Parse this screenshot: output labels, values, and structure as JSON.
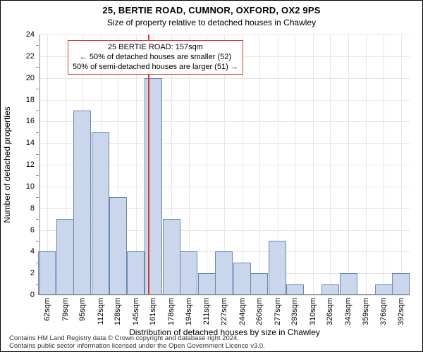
{
  "title": "25, BERTIE ROAD, CUMNOR, OXFORD, OX2 9PS",
  "subtitle": "Size of property relative to detached houses in Chawley",
  "xaxis_title": "Distribution of detached houses by size in Chawley",
  "yaxis_title": "Number of detached properties",
  "attribution_line1": "Contains HM Land Registry data © Crown copyright and database right 2024.",
  "attribution_line2": "Contains public sector information licensed under the Open Government Licence v3.0.",
  "chart": {
    "type": "histogram",
    "ylim": [
      0,
      24
    ],
    "ytick_step": 2,
    "xlim": [
      55,
      400
    ],
    "categories": [
      62,
      79,
      95,
      112,
      128,
      145,
      161,
      178,
      194,
      211,
      227,
      244,
      260,
      277,
      293,
      310,
      326,
      343,
      359,
      376,
      392
    ],
    "values": [
      4,
      7,
      17,
      15,
      9,
      4,
      20,
      7,
      4,
      2,
      4,
      3,
      2,
      5,
      1,
      0,
      1,
      2,
      0,
      1,
      2
    ],
    "x_unit_suffix": "sqm",
    "bin_width": 16.5,
    "bar_fill": "#c9d6ec",
    "bar_border": "#6b87b9",
    "background_color": "#ffffff",
    "grid_color": "#e6e6e6",
    "axis_color": "#888888",
    "marker_value": 157,
    "marker_color": "#d43b2f",
    "marker_width": 2,
    "label_fontsize": 11,
    "title_fontsize": 13
  },
  "callout": {
    "line1": "25 BERTIE ROAD: 157sqm",
    "line2": "← 50% of detached houses are smaller (52)",
    "line3": "50% of semi-detached houses are larger (51) →",
    "border_color": "#d43b2f"
  }
}
